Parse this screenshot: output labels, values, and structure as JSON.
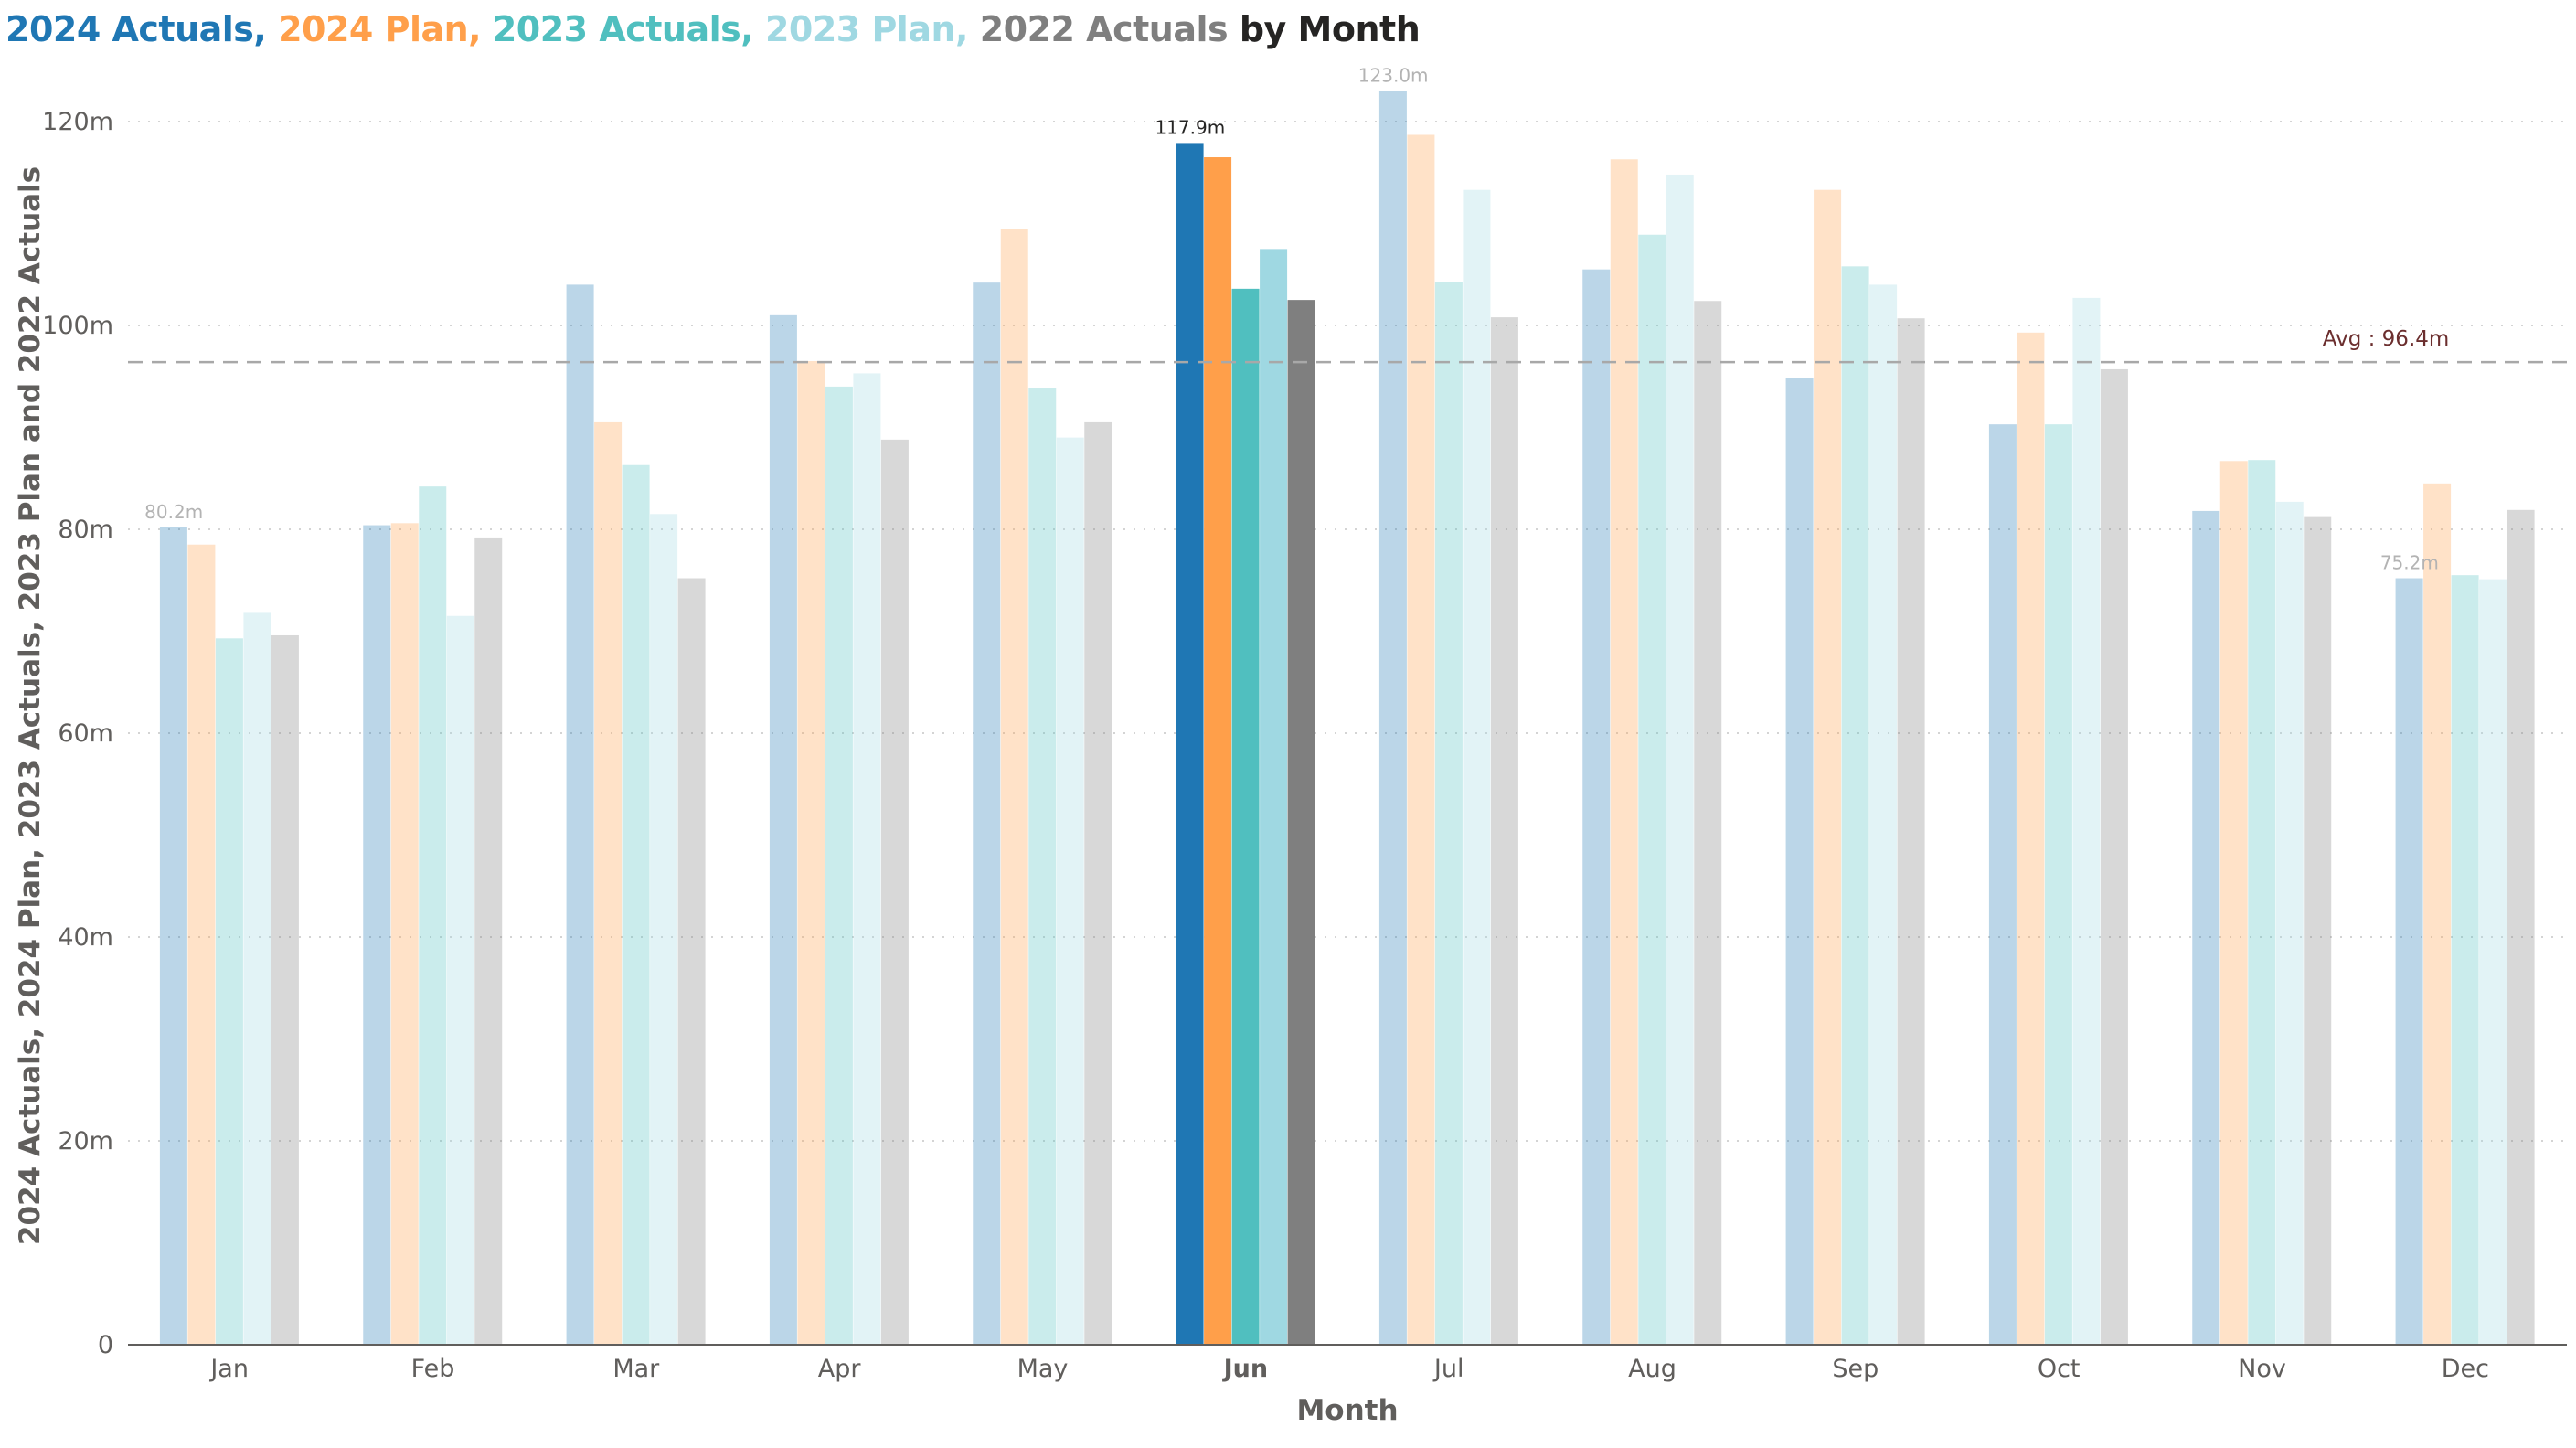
{
  "title": {
    "parts": [
      {
        "text": "2024 Actuals,",
        "color": "#1f77b4"
      },
      {
        "text": "2024 Plan,",
        "color": "#ff9f4a"
      },
      {
        "text": "2023 Actuals,",
        "color": "#50bfbf"
      },
      {
        "text": "2023 Plan,",
        "color": "#9fd8e2"
      },
      {
        "text": "2022 Actuals",
        "color": "#7f7f7f"
      },
      {
        "text": "by Month",
        "color": "#252423"
      }
    ]
  },
  "chart_data": {
    "type": "bar",
    "title": "2024 Actuals, 2024 Plan, 2023 Actuals, 2023 Plan, 2022 Actuals by Month",
    "xlabel": "Month",
    "ylabel": "2024 Actuals, 2024 Plan, 2023 Actuals, 2023 Plan and 2022 Actuals",
    "ylim": [
      0,
      120
    ],
    "yticks": [
      0,
      20,
      40,
      60,
      80,
      100,
      120
    ],
    "ytick_labels": [
      "0",
      "20m",
      "40m",
      "60m",
      "80m",
      "100m",
      "120m"
    ],
    "grid": "horizontal dotted",
    "categories": [
      "Jan",
      "Feb",
      "Mar",
      "Apr",
      "May",
      "Jun",
      "Jul",
      "Aug",
      "Sep",
      "Oct",
      "Nov",
      "Dec"
    ],
    "highlighted_category": "Jun",
    "series": [
      {
        "name": "2024 Actuals",
        "color": "#1f77b4",
        "values": [
          80.2,
          80.4,
          104.0,
          101.0,
          104.2,
          117.9,
          123.0,
          105.5,
          94.8,
          90.3,
          81.8,
          75.2
        ]
      },
      {
        "name": "2024 Plan",
        "color": "#ff9f4a",
        "values": [
          78.5,
          80.6,
          90.5,
          96.5,
          109.5,
          116.5,
          118.7,
          116.3,
          113.3,
          99.3,
          86.7,
          84.5
        ]
      },
      {
        "name": "2023 Actuals",
        "color": "#50bfbf",
        "values": [
          69.3,
          84.2,
          86.3,
          94.0,
          93.9,
          103.6,
          104.3,
          108.9,
          105.8,
          90.3,
          86.8,
          75.5
        ]
      },
      {
        "name": "2023 Plan",
        "color": "#9fd8e2",
        "values": [
          71.8,
          71.5,
          81.5,
          95.3,
          89.0,
          107.5,
          113.3,
          114.8,
          104.0,
          102.7,
          82.7,
          75.1
        ]
      },
      {
        "name": "2022 Actuals",
        "color": "#7f7f7f",
        "values": [
          69.6,
          79.2,
          75.2,
          88.8,
          90.5,
          102.5,
          100.8,
          102.4,
          100.7,
          95.7,
          81.2,
          81.9
        ]
      }
    ],
    "data_labels": [
      {
        "category": "Jan",
        "series": 0,
        "text": "80.2m"
      },
      {
        "category": "Jun",
        "series": 0,
        "text": "117.9m"
      },
      {
        "category": "Jul",
        "series": 0,
        "text": "123.0m"
      },
      {
        "category": "Dec",
        "series": 0,
        "text": "75.2m"
      }
    ],
    "average_line": {
      "value": 96.4,
      "label": "Avg : 96.4m",
      "label_color": "#6b2e2e",
      "line_color": "#a8a8a8"
    }
  }
}
